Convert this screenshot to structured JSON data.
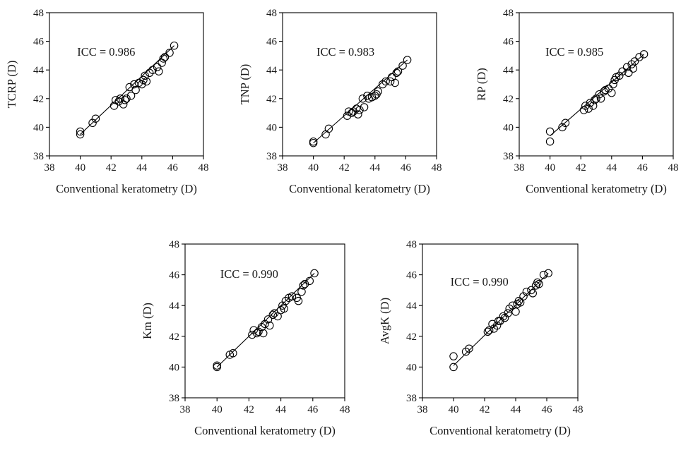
{
  "chart_data": [
    {
      "type": "scatter",
      "xlabel": "Conventional keratometry (D)",
      "ylabel": "TCRP (D)",
      "annotation": "ICC = 0.986",
      "xlim": [
        38,
        48
      ],
      "ylim": [
        38,
        48
      ],
      "xticks": [
        38,
        40,
        42,
        44,
        46,
        48
      ],
      "yticks": [
        38,
        40,
        42,
        44,
        46,
        48
      ],
      "fit_line": {
        "x": [
          40.0,
          46.1
        ],
        "y": [
          39.5,
          45.7
        ]
      },
      "points": {
        "x": [
          40.0,
          40.0,
          40.8,
          41.0,
          42.2,
          42.3,
          42.5,
          42.6,
          42.8,
          42.9,
          43.0,
          43.2,
          43.3,
          43.5,
          43.6,
          43.8,
          44.0,
          44.1,
          44.2,
          44.3,
          44.5,
          44.7,
          45.0,
          45.1,
          45.3,
          45.4,
          45.5,
          45.8,
          46.1
        ],
        "y": [
          39.5,
          39.7,
          40.3,
          40.6,
          41.5,
          41.9,
          41.8,
          42.0,
          41.6,
          41.9,
          42.0,
          42.8,
          42.2,
          43.0,
          42.6,
          43.1,
          43.0,
          43.3,
          43.6,
          43.2,
          43.8,
          44.0,
          44.2,
          43.9,
          44.5,
          44.8,
          44.9,
          45.2,
          45.7
        ]
      }
    },
    {
      "type": "scatter",
      "xlabel": "Conventional keratometry (D)",
      "ylabel": "TNP (D)",
      "annotation": "ICC = 0.983",
      "xlim": [
        38,
        48
      ],
      "ylim": [
        38,
        48
      ],
      "xticks": [
        38,
        40,
        42,
        44,
        46,
        48
      ],
      "yticks": [
        38,
        40,
        42,
        44,
        46,
        48
      ],
      "fit_line": {
        "x": [
          40.0,
          46.1
        ],
        "y": [
          38.9,
          44.7
        ]
      },
      "points": {
        "x": [
          40.0,
          40.0,
          40.8,
          41.0,
          42.2,
          42.3,
          42.5,
          42.6,
          42.8,
          42.9,
          43.0,
          43.2,
          43.3,
          43.5,
          43.6,
          43.8,
          44.0,
          44.1,
          44.2,
          44.5,
          44.7,
          45.0,
          45.1,
          45.3,
          45.4,
          45.5,
          45.8,
          46.1
        ],
        "y": [
          38.9,
          39.0,
          39.5,
          39.9,
          40.8,
          41.1,
          41.0,
          41.1,
          41.3,
          40.9,
          41.2,
          42.0,
          41.4,
          42.2,
          42.0,
          42.1,
          42.2,
          42.3,
          42.5,
          43.0,
          43.2,
          43.2,
          43.5,
          43.1,
          43.8,
          43.9,
          44.3,
          44.7
        ]
      }
    },
    {
      "type": "scatter",
      "xlabel": "Conventional keratometry (D)",
      "ylabel": "RP (D)",
      "annotation": "ICC = 0.985",
      "xlim": [
        38,
        48
      ],
      "ylim": [
        38,
        48
      ],
      "xticks": [
        38,
        40,
        42,
        44,
        46,
        48
      ],
      "yticks": [
        38,
        40,
        42,
        44,
        46,
        48
      ],
      "fit_line": {
        "x": [
          40.0,
          46.1
        ],
        "y": [
          39.4,
          45.1
        ]
      },
      "points": {
        "x": [
          40.0,
          40.0,
          40.8,
          41.0,
          42.2,
          42.3,
          42.5,
          42.6,
          42.8,
          42.9,
          43.0,
          43.2,
          43.3,
          43.5,
          43.6,
          43.8,
          44.0,
          44.1,
          44.2,
          44.3,
          44.5,
          44.7,
          45.0,
          45.1,
          45.3,
          45.4,
          45.5,
          45.8,
          46.1
        ],
        "y": [
          39.0,
          39.7,
          40.0,
          40.3,
          41.2,
          41.5,
          41.3,
          41.7,
          41.5,
          41.9,
          42.0,
          42.3,
          42.0,
          42.5,
          42.6,
          42.7,
          42.4,
          43.0,
          43.3,
          43.5,
          43.6,
          43.9,
          44.2,
          43.8,
          44.4,
          44.1,
          44.6,
          44.9,
          45.1
        ]
      }
    },
    {
      "type": "scatter",
      "xlabel": "Conventional keratometry (D)",
      "ylabel": "Km (D)",
      "annotation": "ICC = 0.990",
      "xlim": [
        38,
        48
      ],
      "ylim": [
        38,
        48
      ],
      "xticks": [
        38,
        40,
        42,
        44,
        46,
        48
      ],
      "yticks": [
        38,
        40,
        42,
        44,
        46,
        48
      ],
      "fit_line": {
        "x": [
          40.0,
          46.1
        ],
        "y": [
          40.0,
          46.1
        ]
      },
      "points": {
        "x": [
          40.0,
          40.0,
          40.8,
          41.0,
          42.2,
          42.3,
          42.5,
          42.6,
          42.8,
          42.9,
          43.0,
          43.2,
          43.3,
          43.5,
          43.6,
          43.8,
          44.0,
          44.1,
          44.2,
          44.3,
          44.5,
          44.7,
          45.0,
          45.1,
          45.3,
          45.4,
          45.5,
          45.8,
          46.1
        ],
        "y": [
          40.0,
          40.1,
          40.8,
          40.9,
          42.1,
          42.4,
          42.2,
          42.3,
          42.6,
          42.2,
          42.8,
          43.1,
          42.7,
          43.4,
          43.5,
          43.3,
          43.7,
          44.0,
          43.8,
          44.3,
          44.5,
          44.6,
          44.5,
          44.3,
          44.9,
          45.3,
          45.4,
          45.6,
          46.1
        ]
      }
    },
    {
      "type": "scatter",
      "xlabel": "Conventional keratometry (D)",
      "ylabel": "AvgK (D)",
      "annotation": "ICC = 0.990",
      "xlim": [
        38,
        48
      ],
      "ylim": [
        38,
        48
      ],
      "xticks": [
        38,
        40,
        42,
        44,
        46,
        48
      ],
      "yticks": [
        38,
        40,
        42,
        44,
        46,
        48
      ],
      "fit_line": {
        "x": [
          40.0,
          46.1
        ],
        "y": [
          40.1,
          46.1
        ]
      },
      "points": {
        "x": [
          40.0,
          40.0,
          40.8,
          41.0,
          42.2,
          42.3,
          42.5,
          42.6,
          42.8,
          42.9,
          43.0,
          43.2,
          43.3,
          43.5,
          43.6,
          43.8,
          44.0,
          44.1,
          44.2,
          44.3,
          44.5,
          44.7,
          45.0,
          45.1,
          45.3,
          45.4,
          45.5,
          45.8,
          46.1
        ],
        "y": [
          40.0,
          40.7,
          41.0,
          41.2,
          42.3,
          42.4,
          42.8,
          42.5,
          42.7,
          43.0,
          43.0,
          43.3,
          43.2,
          43.5,
          43.8,
          44.0,
          43.6,
          44.1,
          44.3,
          44.2,
          44.6,
          44.9,
          45.0,
          44.8,
          45.3,
          45.5,
          45.4,
          46.0,
          46.1
        ]
      }
    }
  ]
}
